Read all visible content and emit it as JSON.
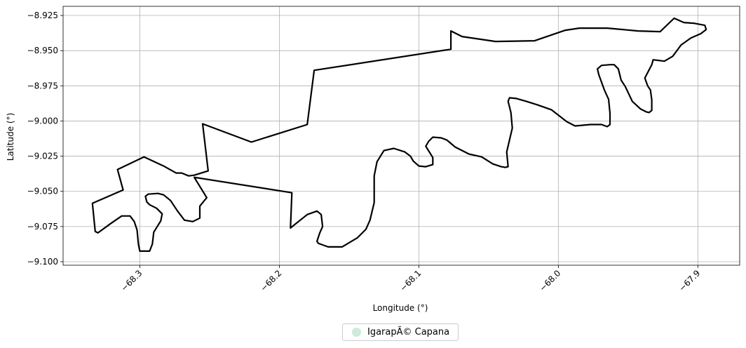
{
  "chart_data": {
    "type": "map",
    "xlabel": "Longitude (°)",
    "ylabel": "Latitude (°)",
    "xlim": [
      -68.355,
      -67.87
    ],
    "ylim": [
      -9.1025,
      -8.9185
    ],
    "x_ticks": [
      {
        "value": -68.3,
        "label": "−68.3"
      },
      {
        "value": -68.2,
        "label": "−68.2"
      },
      {
        "value": -68.1,
        "label": "−68.1"
      },
      {
        "value": -68.0,
        "label": "−68.0"
      },
      {
        "value": -67.9,
        "label": "−67.9"
      }
    ],
    "y_ticks": [
      {
        "value": -8.925,
        "label": "−8.925"
      },
      {
        "value": -8.95,
        "label": "−8.950"
      },
      {
        "value": -8.975,
        "label": "−8.975"
      },
      {
        "value": -9.0,
        "label": "−9.000"
      },
      {
        "value": -9.025,
        "label": "−9.025"
      },
      {
        "value": -9.05,
        "label": "−9.050"
      },
      {
        "value": -9.075,
        "label": "−9.075"
      },
      {
        "value": -9.1,
        "label": "−9.100"
      }
    ],
    "grid": true,
    "legend_position": "bottom-center",
    "series": [
      {
        "name": "IgarapÃ© Capana",
        "legend_color": "#cdeadb",
        "line_color": "#000000",
        "polygon": [
          [
            -68.334,
            -9.0585
          ],
          [
            -68.312,
            -9.049
          ],
          [
            -68.316,
            -9.0345
          ],
          [
            -68.297,
            -9.0255
          ],
          [
            -68.283,
            -9.032
          ],
          [
            -68.274,
            -9.037
          ],
          [
            -68.27,
            -9.037
          ],
          [
            -68.265,
            -9.039
          ],
          [
            -68.261,
            -9.0385
          ],
          [
            -68.251,
            -9.0355
          ],
          [
            -68.255,
            -9.002
          ],
          [
            -68.22,
            -9.015
          ],
          [
            -68.18,
            -9.0025
          ],
          [
            -68.175,
            -8.964
          ],
          [
            -68.077,
            -8.949
          ],
          [
            -68.077,
            -8.936
          ],
          [
            -68.069,
            -8.94
          ],
          [
            -68.045,
            -8.9435
          ],
          [
            -68.017,
            -8.943
          ],
          [
            -67.995,
            -8.9355
          ],
          [
            -67.985,
            -8.934
          ],
          [
            -67.965,
            -8.934
          ],
          [
            -67.943,
            -8.936
          ],
          [
            -67.927,
            -8.9365
          ],
          [
            -67.917,
            -8.927
          ],
          [
            -67.91,
            -8.93
          ],
          [
            -67.903,
            -8.9305
          ],
          [
            -67.895,
            -8.932
          ],
          [
            -67.894,
            -8.935
          ],
          [
            -67.898,
            -8.938
          ],
          [
            -67.905,
            -8.941
          ],
          [
            -67.912,
            -8.946
          ],
          [
            -67.918,
            -8.954
          ],
          [
            -67.924,
            -8.9575
          ],
          [
            -67.928,
            -8.957
          ],
          [
            -67.932,
            -8.9565
          ],
          [
            -67.933,
            -8.96
          ],
          [
            -67.938,
            -8.9695
          ],
          [
            -67.936,
            -8.975
          ],
          [
            -67.934,
            -8.978
          ],
          [
            -67.933,
            -8.985
          ],
          [
            -67.933,
            -8.9925
          ],
          [
            -67.935,
            -8.994
          ],
          [
            -67.937,
            -8.9935
          ],
          [
            -67.941,
            -8.9915
          ],
          [
            -67.947,
            -8.986
          ],
          [
            -67.952,
            -8.9755
          ],
          [
            -67.955,
            -8.971
          ],
          [
            -67.957,
            -8.963
          ],
          [
            -67.96,
            -8.96
          ],
          [
            -67.963,
            -8.96
          ],
          [
            -67.969,
            -8.9605
          ],
          [
            -67.972,
            -8.963
          ],
          [
            -67.971,
            -8.967
          ],
          [
            -67.967,
            -8.978
          ],
          [
            -67.964,
            -8.9845
          ],
          [
            -67.963,
            -8.9945
          ],
          [
            -67.963,
            -9.0025
          ],
          [
            -67.965,
            -9.004
          ],
          [
            -67.969,
            -9.0025
          ],
          [
            -67.977,
            -9.0025
          ],
          [
            -67.988,
            -9.0035
          ],
          [
            -67.994,
            -9.0005
          ],
          [
            -68.005,
            -8.992
          ],
          [
            -68.015,
            -8.9885
          ],
          [
            -68.023,
            -8.986
          ],
          [
            -68.03,
            -8.984
          ],
          [
            -68.035,
            -8.9835
          ],
          [
            -68.036,
            -8.986
          ],
          [
            -68.034,
            -8.994
          ],
          [
            -68.033,
            -9.005
          ],
          [
            -68.035,
            -9.0135
          ],
          [
            -68.037,
            -9.022
          ],
          [
            -68.036,
            -9.0325
          ],
          [
            -68.038,
            -9.033
          ],
          [
            -68.041,
            -9.0325
          ],
          [
            -68.047,
            -9.0305
          ],
          [
            -68.055,
            -9.0255
          ],
          [
            -68.064,
            -9.0235
          ],
          [
            -68.074,
            -9.0185
          ],
          [
            -68.08,
            -9.0135
          ],
          [
            -68.084,
            -9.012
          ],
          [
            -68.09,
            -9.0115
          ],
          [
            -68.093,
            -9.0145
          ],
          [
            -68.095,
            -9.018
          ],
          [
            -68.09,
            -9.026
          ],
          [
            -68.09,
            -9.031
          ],
          [
            -68.095,
            -9.0325
          ],
          [
            -68.1,
            -9.032
          ],
          [
            -68.104,
            -9.0285
          ],
          [
            -68.106,
            -9.025
          ],
          [
            -68.11,
            -9.022
          ],
          [
            -68.118,
            -9.0195
          ],
          [
            -68.125,
            -9.021
          ],
          [
            -68.13,
            -9.029
          ],
          [
            -68.132,
            -9.039
          ],
          [
            -68.132,
            -9.058
          ],
          [
            -68.135,
            -9.0705
          ],
          [
            -68.138,
            -9.077
          ],
          [
            -68.144,
            -9.083
          ],
          [
            -68.155,
            -9.0895
          ],
          [
            -68.165,
            -9.0895
          ],
          [
            -68.172,
            -9.087
          ],
          [
            -68.173,
            -9.0855
          ],
          [
            -68.171,
            -9.0795
          ],
          [
            -68.169,
            -9.075
          ],
          [
            -68.17,
            -9.0665
          ],
          [
            -68.173,
            -9.064
          ],
          [
            -68.18,
            -9.0665
          ],
          [
            -68.192,
            -9.076
          ],
          [
            -68.191,
            -9.051
          ],
          [
            -68.261,
            -9.04
          ],
          [
            -68.252,
            -9.0545
          ],
          [
            -68.257,
            -9.0605
          ],
          [
            -68.257,
            -9.069
          ],
          [
            -68.262,
            -9.0715
          ],
          [
            -68.268,
            -9.0705
          ],
          [
            -68.273,
            -9.064
          ],
          [
            -68.278,
            -9.0565
          ],
          [
            -68.283,
            -9.0525
          ],
          [
            -68.287,
            -9.0515
          ],
          [
            -68.294,
            -9.052
          ],
          [
            -68.296,
            -9.0535
          ],
          [
            -68.295,
            -9.0575
          ],
          [
            -68.293,
            -9.0595
          ],
          [
            -68.288,
            -9.062
          ],
          [
            -68.284,
            -9.066
          ],
          [
            -68.285,
            -9.071
          ],
          [
            -68.29,
            -9.079
          ],
          [
            -68.291,
            -9.0875
          ],
          [
            -68.293,
            -9.0925
          ],
          [
            -68.3,
            -9.0925
          ],
          [
            -68.301,
            -9.0875
          ],
          [
            -68.302,
            -9.0775
          ],
          [
            -68.304,
            -9.0715
          ],
          [
            -68.307,
            -9.0675
          ],
          [
            -68.313,
            -9.0675
          ],
          [
            -68.321,
            -9.073
          ],
          [
            -68.33,
            -9.0795
          ],
          [
            -68.332,
            -9.0785
          ],
          [
            -68.334,
            -9.0585
          ]
        ]
      }
    ]
  }
}
